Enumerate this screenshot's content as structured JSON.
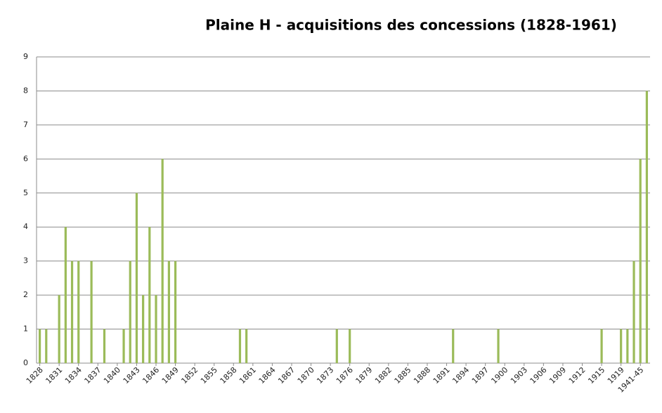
{
  "chart_data": {
    "type": "bar",
    "title": "Plaine H - acquisitions des concessions (1828-1961)",
    "categories": [
      "1828",
      null,
      null,
      "1831",
      null,
      null,
      "1834",
      null,
      null,
      "1837",
      null,
      null,
      "1840",
      null,
      null,
      "1843",
      null,
      null,
      "1846",
      null,
      null,
      "1849",
      null,
      null,
      "1852",
      null,
      null,
      "1855",
      null,
      null,
      "1858",
      null,
      null,
      "1861",
      null,
      null,
      "1864",
      null,
      null,
      "1867",
      null,
      null,
      "1870",
      null,
      null,
      "1873",
      null,
      null,
      "1876",
      null,
      null,
      "1879",
      null,
      null,
      "1882",
      null,
      null,
      "1885",
      null,
      null,
      "1888",
      null,
      null,
      "1891",
      null,
      null,
      "1894",
      null,
      null,
      "1897",
      null,
      null,
      "1900",
      null,
      null,
      "1903",
      null,
      null,
      "1906",
      null,
      null,
      "1909",
      null,
      null,
      "1912",
      null,
      null,
      "1915",
      null,
      null,
      "1919",
      null,
      null,
      "1941-45",
      null
    ],
    "values": [
      1,
      1,
      0,
      2,
      4,
      3,
      3,
      0,
      3,
      0,
      1,
      0,
      0,
      1,
      3,
      5,
      2,
      4,
      2,
      6,
      3,
      3,
      0,
      0,
      0,
      0,
      0,
      0,
      0,
      0,
      0,
      1,
      1,
      0,
      0,
      0,
      0,
      0,
      0,
      0,
      0,
      0,
      0,
      0,
      0,
      0,
      1,
      0,
      1,
      0,
      0,
      0,
      0,
      0,
      0,
      0,
      0,
      0,
      0,
      0,
      0,
      0,
      0,
      0,
      1,
      0,
      0,
      0,
      0,
      0,
      0,
      1,
      0,
      0,
      0,
      0,
      0,
      0,
      0,
      0,
      0,
      0,
      0,
      0,
      0,
      0,
      0,
      1,
      0,
      0,
      1,
      1,
      3,
      6,
      8
    ],
    "color": "#9bbb59",
    "ylim": [
      0,
      9
    ],
    "yticks": [
      0,
      1,
      2,
      3,
      4,
      5,
      6,
      7,
      8,
      9
    ],
    "grid": true
  }
}
